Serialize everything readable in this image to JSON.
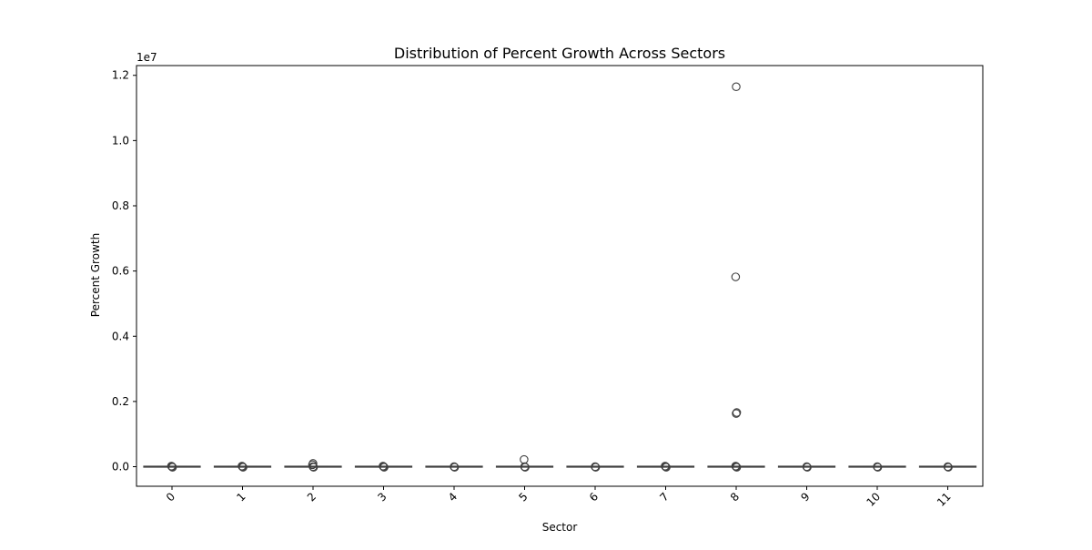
{
  "chart_data": {
    "type": "box",
    "title": "Distribution of Percent Growth Across Sectors",
    "xlabel": "Sector",
    "ylabel": "Percent Growth",
    "y_offset_label": "1e7",
    "categories": [
      "0",
      "1",
      "2",
      "3",
      "4",
      "5",
      "6",
      "7",
      "8",
      "9",
      "10",
      "11"
    ],
    "ylim": [
      -600000,
      12300000
    ],
    "y_ticks": [
      0,
      2000000,
      4000000,
      6000000,
      8000000,
      10000000,
      12000000
    ],
    "y_tick_labels": [
      "0.0",
      "0.2",
      "0.4",
      "0.6",
      "0.8",
      "1.0",
      "1.2"
    ],
    "x_tick_rotation": 45,
    "grid": false,
    "boxes": [
      {
        "category": "0",
        "median": 0,
        "q1": 0,
        "q3": 0,
        "whisker_low": 0,
        "whisker_high": 0,
        "outliers": [
          0,
          0,
          0
        ]
      },
      {
        "category": "1",
        "median": 0,
        "q1": 0,
        "q3": 0,
        "whisker_low": 0,
        "whisker_high": 0,
        "outliers": [
          0,
          0,
          0
        ]
      },
      {
        "category": "2",
        "median": 0,
        "q1": 0,
        "q3": 0,
        "whisker_low": 0,
        "whisker_high": 0,
        "outliers": [
          0,
          0,
          60000,
          100000
        ]
      },
      {
        "category": "3",
        "median": 0,
        "q1": 0,
        "q3": 0,
        "whisker_low": 0,
        "whisker_high": 0,
        "outliers": [
          0,
          0,
          0
        ]
      },
      {
        "category": "4",
        "median": 0,
        "q1": 0,
        "q3": 0,
        "whisker_low": 0,
        "whisker_high": 0,
        "outliers": [
          0,
          0
        ]
      },
      {
        "category": "5",
        "median": 0,
        "q1": 0,
        "q3": 0,
        "whisker_low": 0,
        "whisker_high": 0,
        "outliers": [
          0,
          0,
          220000
        ]
      },
      {
        "category": "6",
        "median": 0,
        "q1": 0,
        "q3": 0,
        "whisker_low": 0,
        "whisker_high": 0,
        "outliers": [
          0,
          0
        ]
      },
      {
        "category": "7",
        "median": 0,
        "q1": 0,
        "q3": 0,
        "whisker_low": 0,
        "whisker_high": 0,
        "outliers": [
          0,
          0,
          0
        ]
      },
      {
        "category": "8",
        "median": 0,
        "q1": 0,
        "q3": 0,
        "whisker_low": 0,
        "whisker_high": 0,
        "outliers": [
          0,
          0,
          0,
          1630000,
          1660000,
          5820000,
          11650000
        ]
      },
      {
        "category": "9",
        "median": 0,
        "q1": 0,
        "q3": 0,
        "whisker_low": 0,
        "whisker_high": 0,
        "outliers": [
          0,
          0
        ]
      },
      {
        "category": "10",
        "median": 0,
        "q1": 0,
        "q3": 0,
        "whisker_low": 0,
        "whisker_high": 0,
        "outliers": [
          0,
          0
        ]
      },
      {
        "category": "11",
        "median": 0,
        "q1": 0,
        "q3": 0,
        "whisker_low": 0,
        "whisker_high": 0,
        "outliers": [
          0,
          0
        ]
      }
    ],
    "colors": {
      "line": "#3f3f3f",
      "axis": "#000000",
      "background": "#ffffff"
    }
  }
}
